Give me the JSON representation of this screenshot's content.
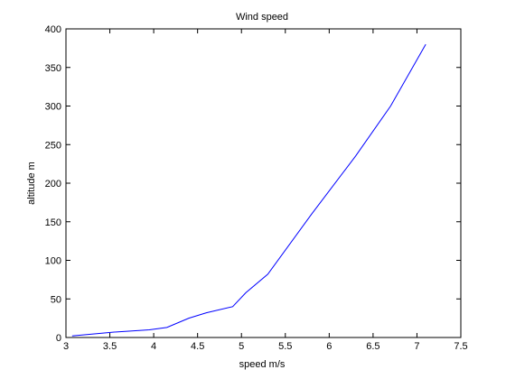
{
  "chart_data": {
    "type": "line",
    "title": "Wind speed",
    "xlabel": "speed m/s",
    "ylabel": "altitude m",
    "xlim": [
      3,
      7.5
    ],
    "ylim": [
      0,
      400
    ],
    "xticks": [
      "3",
      "3.5",
      "4",
      "4.5",
      "5",
      "5.5",
      "6",
      "6.5",
      "7",
      "7.5"
    ],
    "yticks": [
      "0",
      "50",
      "100",
      "150",
      "200",
      "250",
      "300",
      "350",
      "400"
    ],
    "grid": false,
    "series": [
      {
        "color": "#0000ff",
        "x": [
          3.07,
          3.55,
          3.95,
          4.15,
          4.4,
          4.6,
          4.9,
          5.05,
          5.3,
          5.8,
          6.3,
          6.7,
          7.1
        ],
        "y": [
          2,
          7,
          10,
          13,
          25,
          32,
          40,
          58,
          82,
          160,
          235,
          300,
          380
        ]
      }
    ]
  }
}
